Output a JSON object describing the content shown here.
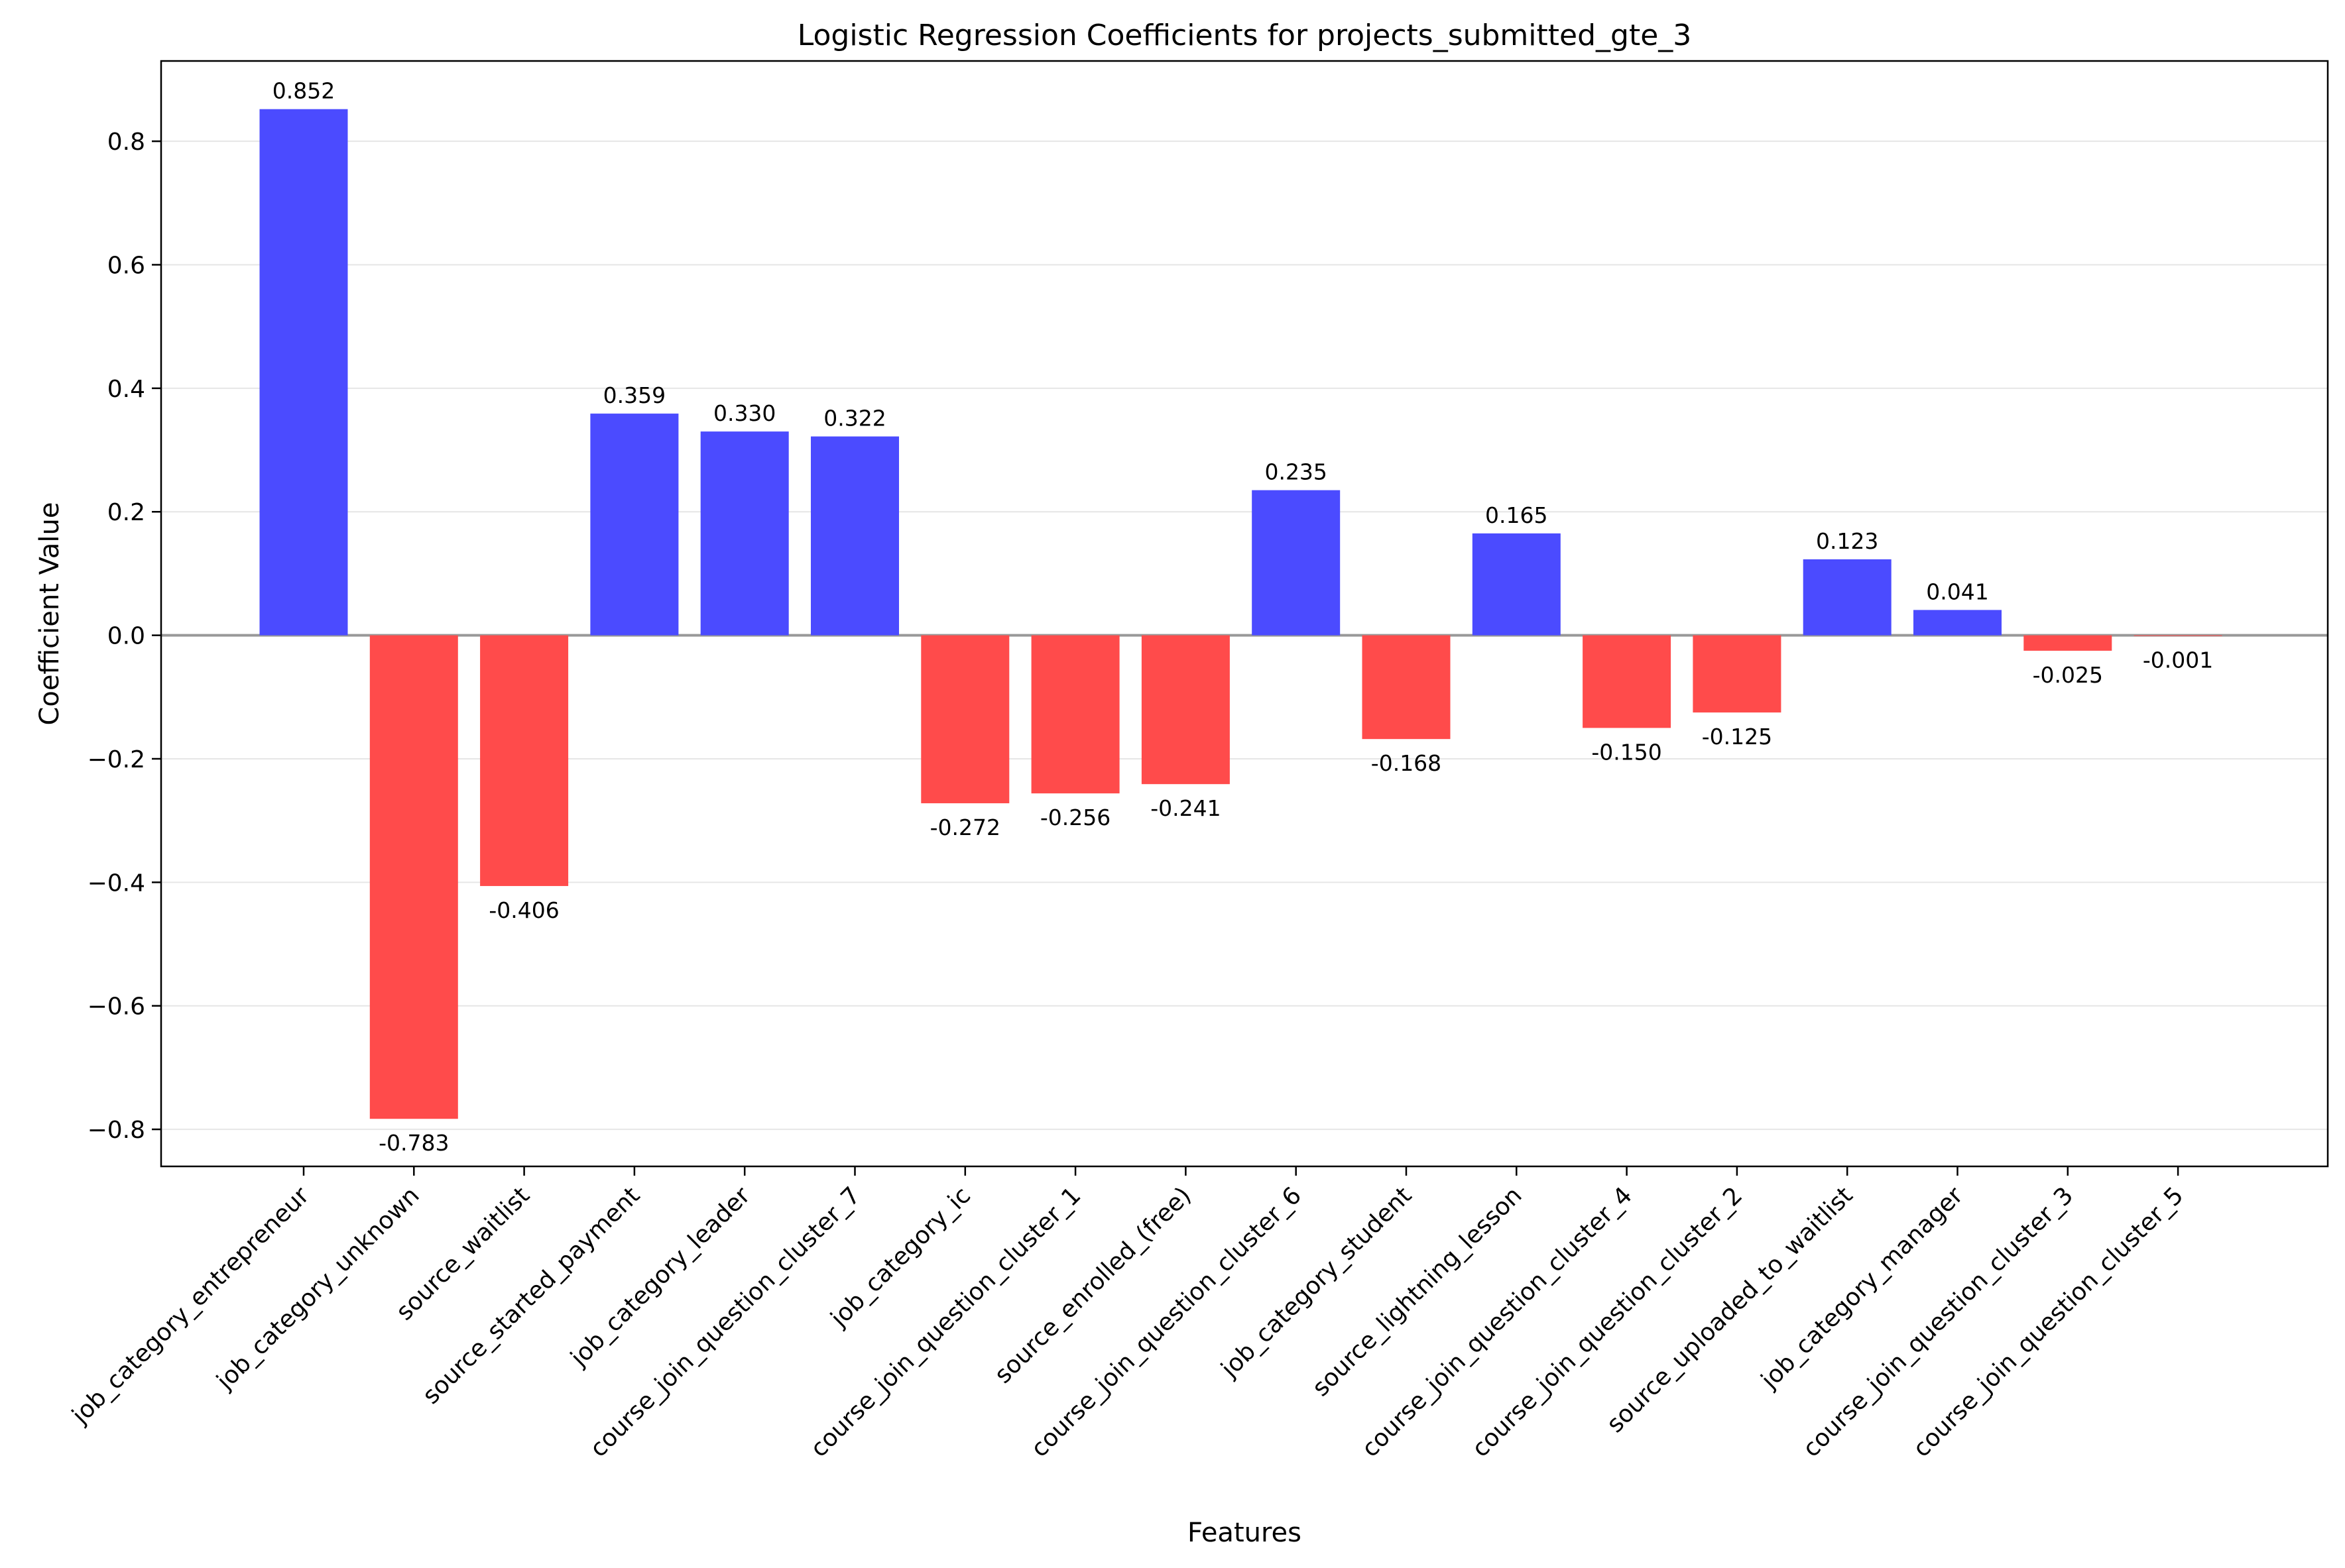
{
  "chart_data": {
    "type": "bar",
    "title": "Logistic Regression Coefficients for projects_submitted_gte_3",
    "xlabel": "Features",
    "ylabel": "Coefficient Value",
    "ylim": [
      -0.86,
      0.93
    ],
    "yticks": [
      -0.8,
      -0.6,
      -0.4,
      -0.2,
      0.0,
      0.2,
      0.4,
      0.6,
      0.8
    ],
    "ytick_labels": [
      "−0.8",
      "−0.6",
      "−0.4",
      "−0.2",
      "0.0",
      "0.2",
      "0.4",
      "0.6",
      "0.8"
    ],
    "grid": "y",
    "colors": {
      "positive": "#4b4bff",
      "negative": "#ff4b4b",
      "zero_line": "#999999"
    },
    "categories": [
      "job_category_entrepreneur",
      "job_category_unknown",
      "source_waitlist",
      "source_started_payment",
      "job_category_leader",
      "course_join_question_cluster_7",
      "job_category_ic",
      "course_join_question_cluster_1",
      "source_enrolled_(free)",
      "course_join_question_cluster_6",
      "job_category_student",
      "source_lightning_lesson",
      "course_join_question_cluster_4",
      "course_join_question_cluster_2",
      "source_uploaded_to_waitlist",
      "job_category_manager",
      "course_join_question_cluster_3",
      "course_join_question_cluster_5"
    ],
    "values": [
      0.852,
      -0.783,
      -0.406,
      0.359,
      0.33,
      0.322,
      -0.272,
      -0.256,
      -0.241,
      0.235,
      -0.168,
      0.165,
      -0.15,
      -0.125,
      0.123,
      0.041,
      -0.025,
      -0.001
    ],
    "value_labels": [
      "0.852",
      "-0.783",
      "-0.406",
      "0.359",
      "0.330",
      "0.322",
      "-0.272",
      "-0.256",
      "-0.241",
      "0.235",
      "-0.168",
      "0.165",
      "-0.150",
      "-0.125",
      "0.123",
      "0.041",
      "-0.025",
      "-0.001"
    ]
  }
}
